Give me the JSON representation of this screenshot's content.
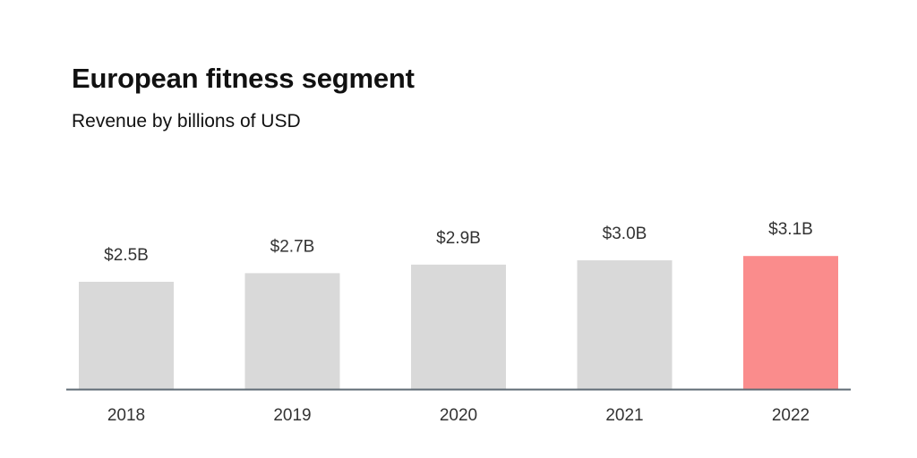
{
  "header": {
    "title": "European fitness segment",
    "subtitle": "Revenue by billions of USD"
  },
  "colors": {
    "bar_default": "#d9d9d9",
    "bar_highlight": "#fa8c8c",
    "axis": "#5f6b75",
    "text": "#333333"
  },
  "chart_data": {
    "type": "bar",
    "title": "European fitness segment",
    "subtitle": "Revenue by billions of USD",
    "categories": [
      "2018",
      "2019",
      "2020",
      "2021",
      "2022"
    ],
    "values": [
      2.5,
      2.7,
      2.9,
      3.0,
      3.1
    ],
    "value_labels": [
      "$2.5B",
      "$2.7B",
      "$2.9B",
      "$3.0B",
      "$3.1B"
    ],
    "highlight_index": 4,
    "xlabel": "",
    "ylabel": "",
    "ylim": [
      0,
      5.0
    ],
    "grid": false,
    "legend": "none"
  }
}
